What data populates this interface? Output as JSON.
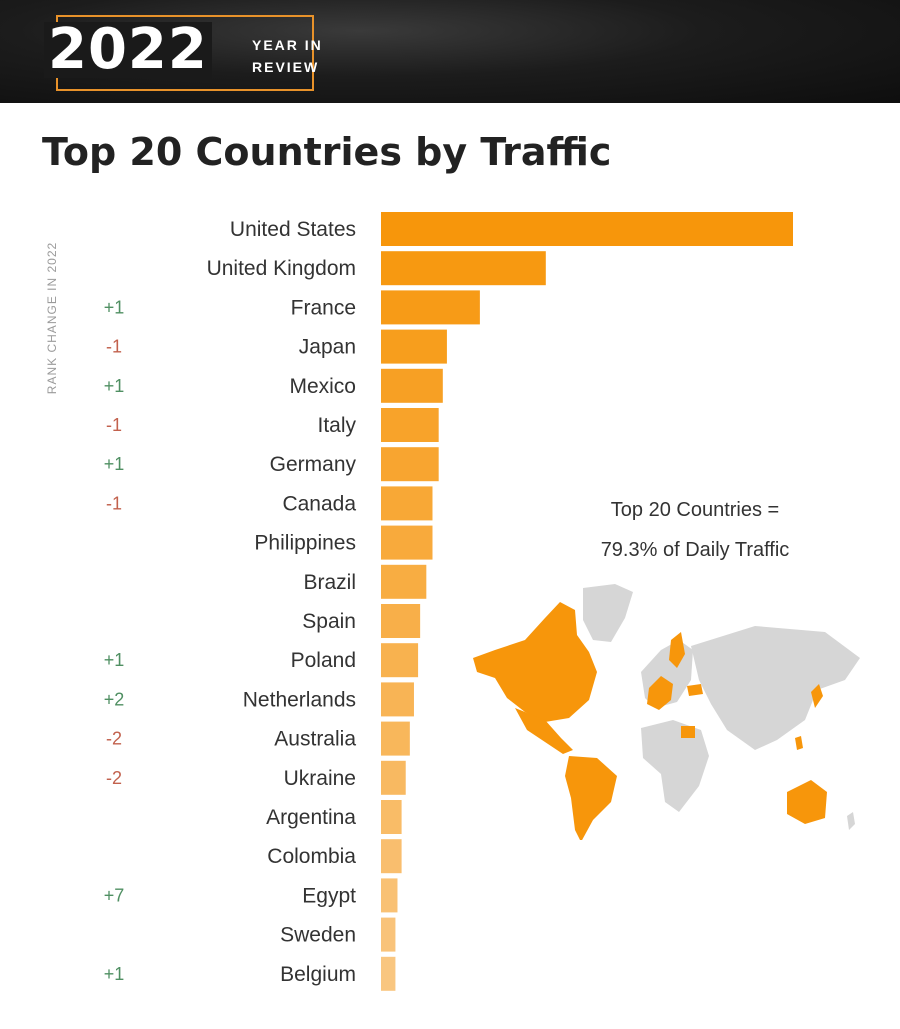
{
  "banner": {
    "year": "2022",
    "line1": "YEAR IN",
    "line2": "REVIEW"
  },
  "page_title": "Top 20 Countries by Traffic",
  "axis_label": "RANK CHANGE IN 2022",
  "annotation": {
    "line1": "Top 20 Countries =",
    "line2": "79.3% of Daily Traffic"
  },
  "colors": {
    "bar_top": "#f7960b",
    "bar_bottom": "#f9c680",
    "positive": "#4f8f62",
    "negative": "#c2614d",
    "map_highlight": "#f7960b",
    "map_other": "#d6d6d6"
  },
  "chart_data": {
    "type": "bar",
    "orientation": "horizontal",
    "title": "Top 20 Countries by Traffic",
    "categories": [
      "United States",
      "United Kingdom",
      "France",
      "Japan",
      "Mexico",
      "Italy",
      "Germany",
      "Canada",
      "Philippines",
      "Brazil",
      "Spain",
      "Poland",
      "Netherlands",
      "Australia",
      "Ukraine",
      "Argentina",
      "Colombia",
      "Egypt",
      "Sweden",
      "Belgium"
    ],
    "values": [
      100,
      40,
      24,
      16,
      15,
      14,
      14,
      12.5,
      12.5,
      11,
      9.5,
      9,
      8,
      7,
      6,
      5,
      5,
      4,
      3.5,
      3.5
    ],
    "rank_change": [
      "",
      "",
      "+1",
      "-1",
      "+1",
      "-1",
      "+1",
      "-1",
      "",
      "",
      "",
      "+1",
      "+2",
      "-2",
      "-2",
      "",
      "",
      "+7",
      "",
      "+1"
    ],
    "xlim": [
      0,
      100
    ]
  }
}
